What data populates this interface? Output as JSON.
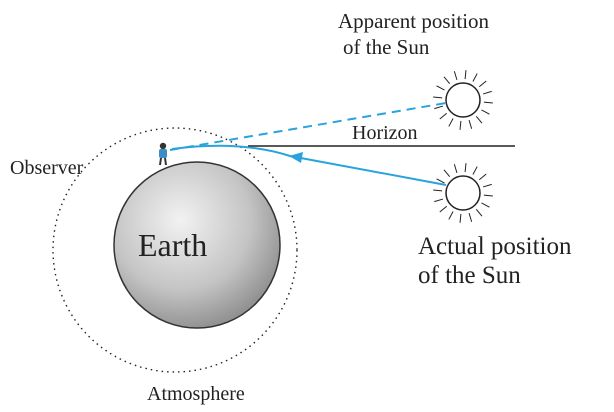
{
  "labels": {
    "apparent_line1": "Apparent position",
    "apparent_line2": "of the Sun",
    "horizon": "Horizon",
    "observer": "Observer",
    "earth": "Earth",
    "actual_line1": "Actual position",
    "actual_line2": "of the Sun",
    "atmosphere": "Atmosphere"
  }
}
